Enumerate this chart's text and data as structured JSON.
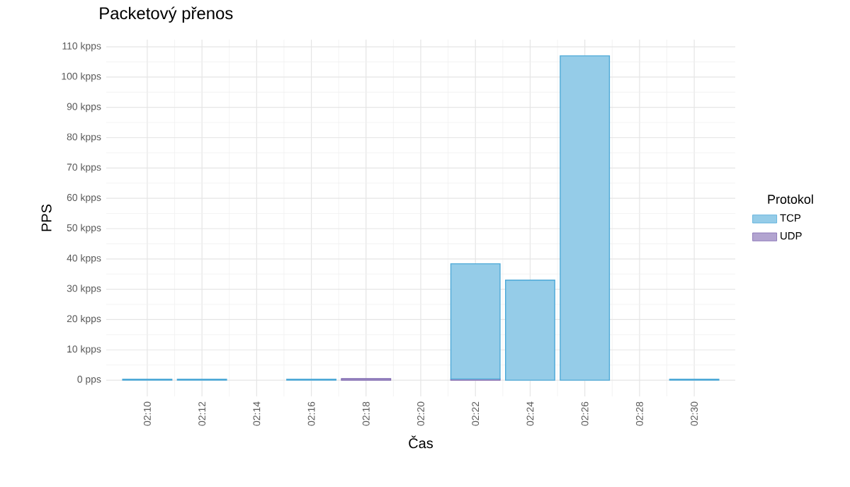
{
  "chart_data": {
    "type": "bar",
    "title": "Packetový přenos",
    "xlabel": "Čas",
    "ylabel": "PPS",
    "legend_title": "Protokol",
    "categories": [
      "02:10",
      "02:12",
      "02:14",
      "02:16",
      "02:18",
      "02:20",
      "02:22",
      "02:24",
      "02:26",
      "02:28",
      "02:30"
    ],
    "series": [
      {
        "name": "UDP",
        "color": "#7e67b0",
        "values": [
          null,
          null,
          null,
          null,
          0.5,
          null,
          0.4,
          null,
          null,
          null,
          null
        ]
      },
      {
        "name": "TCP",
        "color": "#4faad8",
        "values": [
          0.3,
          0.3,
          null,
          0.3,
          null,
          null,
          38,
          33,
          107,
          null,
          0.3
        ]
      }
    ],
    "stacked": true,
    "ylim": [
      -5.35,
      112.35
    ],
    "yticks": [
      {
        "value": 0,
        "label": "0 pps"
      },
      {
        "value": 10,
        "label": "10 kpps"
      },
      {
        "value": 20,
        "label": "20 kpps"
      },
      {
        "value": 30,
        "label": "30 kpps"
      },
      {
        "value": 40,
        "label": "40 kpps"
      },
      {
        "value": 50,
        "label": "50 kpps"
      },
      {
        "value": 60,
        "label": "60 kpps"
      },
      {
        "value": 70,
        "label": "70 kpps"
      },
      {
        "value": 80,
        "label": "80 kpps"
      },
      {
        "value": 90,
        "label": "90 kpps"
      },
      {
        "value": 100,
        "label": "100 kpps"
      },
      {
        "value": 110,
        "label": "110 kpps"
      }
    ],
    "grid": true,
    "legend": "right"
  }
}
